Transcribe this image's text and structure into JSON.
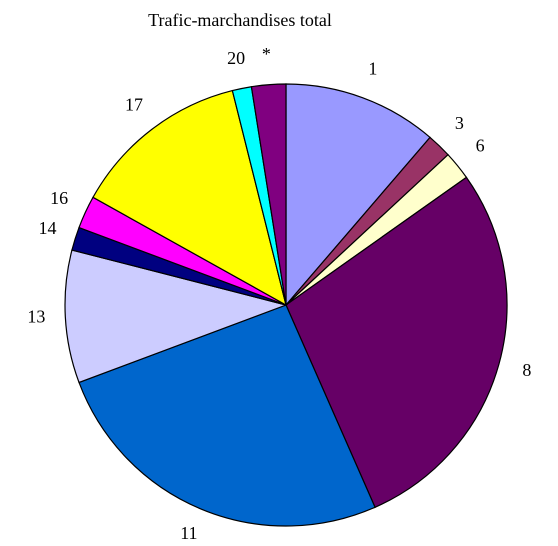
{
  "chart_data": {
    "type": "pie",
    "title": "Trafic-marchandises total",
    "categories": [
      "1",
      "3",
      "6",
      "8",
      "11",
      "13",
      "14",
      "16",
      "17",
      "20",
      "*"
    ],
    "values": [
      11.3,
      1.8,
      2.1,
      28.2,
      25.9,
      9.7,
      1.7,
      2.4,
      13,
      1.4,
      2.5
    ],
    "colors": [
      "#9999ff",
      "#993366",
      "#ffffcc",
      "#660066",
      "#0066cc",
      "#ccccff",
      "#000080",
      "#ff00ff",
      "#ffff00",
      "#00ffff",
      "#800080"
    ]
  }
}
